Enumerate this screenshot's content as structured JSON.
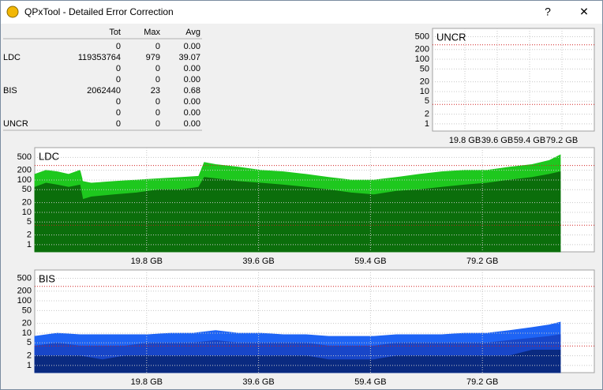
{
  "window": {
    "title": "QPxTool - Detailed Error Correction",
    "help": "?",
    "close": "✕"
  },
  "table": {
    "columns": [
      "Tot",
      "Max",
      "Avg"
    ],
    "rows": [
      {
        "tot": "0",
        "max": "0",
        "avg": "0.00"
      },
      {
        "label": "LDC",
        "tot": "119353764",
        "max": "979",
        "avg": "39.07"
      },
      {
        "tot": "0",
        "max": "0",
        "avg": "0.00"
      },
      {
        "tot": "0",
        "max": "0",
        "avg": "0.00"
      },
      {
        "label": "BIS",
        "tot": "2062440",
        "max": "23",
        "avg": "0.68"
      },
      {
        "tot": "0",
        "max": "0",
        "avg": "0.00"
      },
      {
        "tot": "0",
        "max": "0",
        "avg": "0.00"
      },
      {
        "label": "UNCR",
        "tot": "0",
        "max": "0",
        "avg": "0.00"
      }
    ]
  },
  "chart_data": [
    {
      "type": "area",
      "title": "UNCR",
      "log_y": true,
      "grid": true,
      "xlim": [
        0,
        99
      ],
      "xticks": [
        {
          "value": 19.8,
          "label": "19.8 GB"
        },
        {
          "value": 39.6,
          "label": "39.6 GB"
        },
        {
          "value": 59.4,
          "label": "59.4 GB"
        },
        {
          "value": 79.2,
          "label": "79.2 GB"
        }
      ],
      "ylim": [
        0.6,
        900
      ],
      "yticks": [
        1,
        2,
        5,
        10,
        20,
        50,
        100,
        200,
        500
      ],
      "threshold_lines": [
        280,
        4
      ],
      "threshold_color": "#d02020",
      "series": []
    },
    {
      "type": "area",
      "title": "LDC",
      "log_y": true,
      "grid": true,
      "xlim": [
        0,
        99
      ],
      "xticks": [
        {
          "value": 19.8,
          "label": "19.8 GB"
        },
        {
          "value": 39.6,
          "label": "39.6 GB"
        },
        {
          "value": 59.4,
          "label": "59.4 GB"
        },
        {
          "value": 79.2,
          "label": "79.2 GB"
        }
      ],
      "ylim": [
        0.6,
        1000
      ],
      "yticks": [
        1,
        2,
        5,
        10,
        20,
        50,
        100,
        200,
        500
      ],
      "threshold_lines": [
        280,
        4
      ],
      "threshold_color": "#d02020",
      "series": [
        {
          "color": "#1ec81e",
          "x": [
            0,
            2,
            4,
            6,
            8,
            8.5,
            10,
            14,
            18,
            22,
            26,
            29,
            30,
            32,
            36,
            40,
            44,
            48,
            52,
            56,
            60,
            64,
            68,
            72,
            76,
            80,
            84,
            88,
            91,
            93
          ],
          "values": [
            150,
            200,
            180,
            150,
            200,
            90,
            80,
            90,
            100,
            110,
            120,
            130,
            350,
            300,
            250,
            200,
            180,
            150,
            120,
            100,
            100,
            120,
            150,
            180,
            200,
            200,
            250,
            300,
            400,
            600
          ]
        },
        {
          "color": "#0b6e0b",
          "x": [
            0,
            2,
            4,
            6,
            8,
            8.5,
            10,
            14,
            18,
            22,
            26,
            29,
            30,
            32,
            36,
            40,
            44,
            48,
            52,
            56,
            60,
            64,
            68,
            72,
            76,
            80,
            84,
            88,
            91,
            93
          ],
          "values": [
            60,
            80,
            70,
            60,
            70,
            25,
            30,
            35,
            40,
            50,
            50,
            60,
            120,
            110,
            90,
            80,
            70,
            60,
            50,
            40,
            35,
            45,
            50,
            60,
            70,
            80,
            100,
            120,
            150,
            180
          ]
        }
      ]
    },
    {
      "type": "area",
      "title": "BIS",
      "log_y": true,
      "grid": true,
      "xlim": [
        0,
        99
      ],
      "xticks": [
        {
          "value": 19.8,
          "label": "19.8 GB"
        },
        {
          "value": 39.6,
          "label": "39.6 GB"
        },
        {
          "value": 59.4,
          "label": "59.4 GB"
        },
        {
          "value": 79.2,
          "label": "79.2 GB"
        }
      ],
      "ylim": [
        0.6,
        900
      ],
      "yticks": [
        1,
        2,
        5,
        10,
        20,
        50,
        100,
        200,
        500
      ],
      "threshold_lines": [
        280,
        4
      ],
      "threshold_color": "#d02020",
      "series": [
        {
          "color": "#1e64f5",
          "x": [
            0,
            4,
            8,
            12,
            16,
            20,
            24,
            28,
            32,
            36,
            40,
            44,
            48,
            52,
            56,
            60,
            64,
            68,
            72,
            76,
            80,
            84,
            88,
            91,
            93
          ],
          "values": [
            8,
            10,
            9,
            9,
            9,
            9,
            10,
            10,
            12,
            10,
            10,
            9,
            9,
            8,
            8,
            8,
            9,
            9,
            9,
            10,
            10,
            12,
            15,
            18,
            22
          ]
        },
        {
          "color": "#1846c8",
          "x": [
            0,
            4,
            8,
            12,
            16,
            20,
            24,
            28,
            32,
            36,
            40,
            44,
            48,
            52,
            56,
            60,
            64,
            68,
            72,
            76,
            80,
            84,
            88,
            91,
            93
          ],
          "values": [
            4,
            5,
            4,
            4,
            4,
            5,
            5,
            5,
            6,
            5,
            5,
            5,
            5,
            4,
            4,
            4,
            5,
            5,
            5,
            5,
            5,
            6,
            7,
            8,
            9
          ]
        },
        {
          "color": "#0a2a80",
          "x": [
            0,
            4,
            8,
            12,
            16,
            20,
            24,
            28,
            32,
            36,
            40,
            44,
            48,
            52,
            56,
            60,
            64,
            68,
            72,
            76,
            80,
            84,
            88,
            91,
            93
          ],
          "values": [
            2,
            2,
            2,
            1.5,
            2,
            2,
            2,
            2,
            2,
            2,
            2,
            2,
            2,
            1.5,
            1.5,
            1.5,
            2,
            2,
            2,
            2,
            2,
            2,
            3,
            3,
            3
          ]
        }
      ]
    }
  ]
}
